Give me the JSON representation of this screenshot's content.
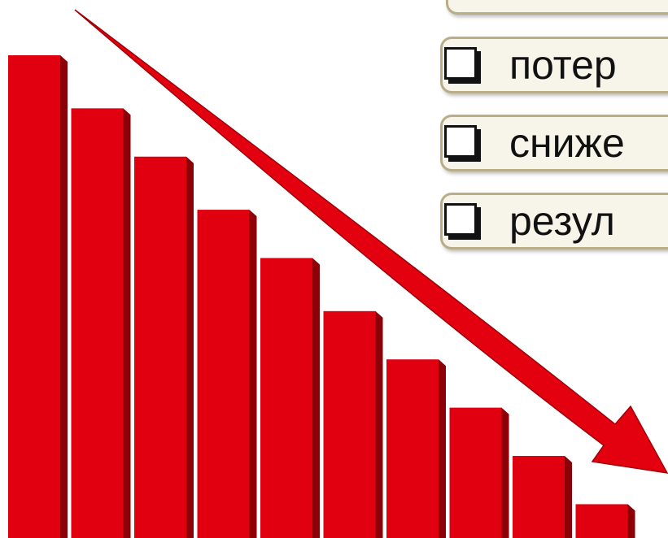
{
  "slide": {
    "bullets": [
      {
        "text": "потер"
      },
      {
        "text": "сниже"
      },
      {
        "text": "резул"
      }
    ]
  },
  "graphic": {
    "bar_color": "#e00010",
    "bar_dark_color": "#8c0008",
    "arrow_color": "#e3000f",
    "relative_bar_heights": [
      1.0,
      0.89,
      0.79,
      0.68,
      0.58,
      0.47,
      0.37,
      0.27,
      0.17,
      0.07
    ]
  }
}
